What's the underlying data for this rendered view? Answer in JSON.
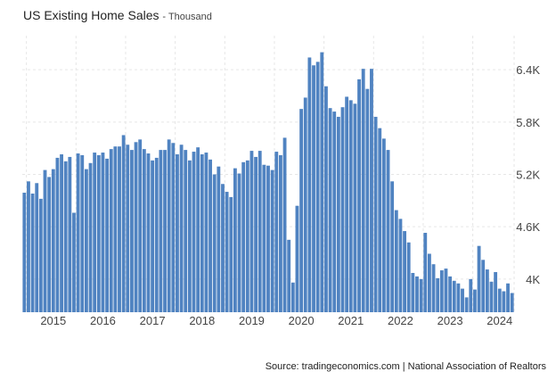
{
  "chart_data": {
    "type": "bar",
    "title": "US Existing Home Sales",
    "subtitle": "Thousand",
    "source": "Source: tradingeconomics.com | National Association of Realtors",
    "color": "#5083c1",
    "grid": true,
    "x_tick_labels": [
      "2015",
      "2016",
      "2017",
      "2018",
      "2019",
      "2020",
      "2021",
      "2022",
      "2023",
      "2024"
    ],
    "y_tick_labels": [
      "4K",
      "4.6K",
      "5.2K",
      "5.8K",
      "6.4K"
    ],
    "y_ticks": [
      4000,
      4600,
      5200,
      5800,
      6400
    ],
    "ylim": [
      3620,
      6790
    ],
    "start": "2014-12",
    "end": "2024-08",
    "values": [
      4990,
      5120,
      4980,
      5100,
      4920,
      5250,
      5170,
      5260,
      5390,
      5430,
      5350,
      5400,
      4760,
      5440,
      5420,
      5260,
      5330,
      5450,
      5420,
      5450,
      5380,
      5490,
      5520,
      5520,
      5650,
      5540,
      5480,
      5570,
      5600,
      5490,
      5440,
      5360,
      5390,
      5480,
      5480,
      5600,
      5560,
      5430,
      5540,
      5480,
      5360,
      5460,
      5510,
      5430,
      5450,
      5370,
      5200,
      5290,
      5090,
      5000,
      4940,
      5270,
      5210,
      5340,
      5360,
      5470,
      5400,
      5470,
      5310,
      5300,
      5250,
      5460,
      5420,
      5620,
      4450,
      3960,
      4840,
      5950,
      6080,
      6540,
      6450,
      6490,
      6600,
      6210,
      5960,
      5920,
      5860,
      5970,
      6090,
      6050,
      6010,
      6290,
      6410,
      6180,
      6410,
      5860,
      5730,
      5610,
      5480,
      5120,
      4790,
      4690,
      4550,
      4420,
      4070,
      4030,
      4000,
      4530,
      4290,
      4170,
      4010,
      4100,
      4120,
      4030,
      3980,
      3950,
      3890,
      3790,
      4000,
      3880,
      4380,
      4220,
      4110,
      3970,
      4080,
      3890,
      3860,
      3950,
      3840
    ]
  }
}
